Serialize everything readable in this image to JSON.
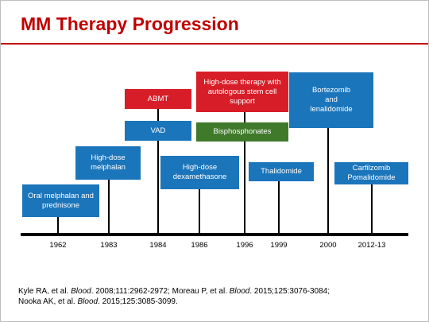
{
  "title": "MM Therapy Progression",
  "years": {
    "y1962": "1962",
    "y1983": "1983",
    "y1984": "1984",
    "y1986": "1986",
    "y1996": "1996",
    "y1999": "1999",
    "y2000": "2000",
    "y2012": "2012-13"
  },
  "events": {
    "oral_melphalan": "Oral melphalan and prednisone",
    "high_dose_melphalan": "High-dose melphalan",
    "vad": "VAD",
    "abmt": "ABMT",
    "high_dose_dexamethasone": "High-dose dexamethasone",
    "high_dose_therapy": "High-dose therapy with autologous stem cell support",
    "bisphosphonates": "Bisphosphonates",
    "thalidomide": "Thalidomide",
    "bortezomib_lenalidomide": "Bortezomib and lenalidomide",
    "carfilzomib_pomalidomide": "Carfilzomib Pomalidomide"
  },
  "colors": {
    "title": "#c00000",
    "blue_box": "#1b75bb",
    "red_box": "#d71e28",
    "green_box": "#3f7a2a"
  },
  "references": {
    "r1_authors": "Kyle RA, et al. ",
    "r1_journal": "Blood",
    "r1_citation": ". 2008;111:2962-2972; ",
    "r2_authors": "Moreau P, et al. ",
    "r2_journal": "Blood",
    "r2_citation": ". 2015;125:3076-3084;",
    "r3_authors": "Nooka AK, et al. ",
    "r3_journal": "Blood",
    "r3_citation": ". 2015;125:3085-3099."
  }
}
